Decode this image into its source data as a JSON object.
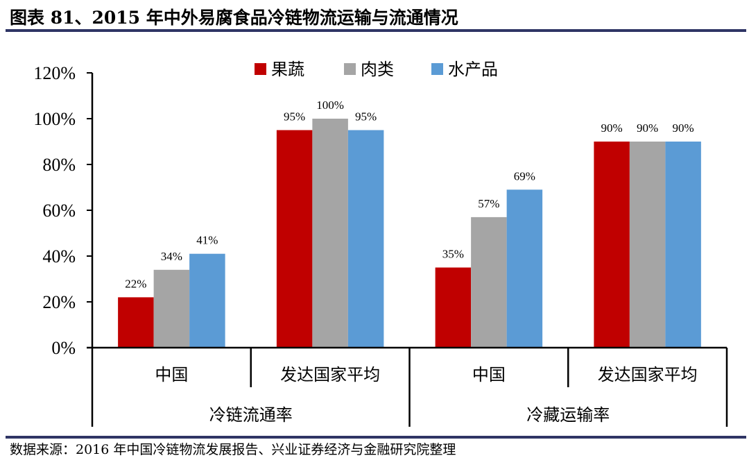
{
  "header": {
    "title": "图表 81、2015 年中外易腐食品冷链物流运输与流通情况"
  },
  "footer": {
    "source": "数据来源：2016 年中国冷链物流发展报告、兴业证券经济与金融研究院整理"
  },
  "colors": {
    "rule": "#2f3565",
    "axis": "#000000"
  },
  "chart_data": {
    "type": "bar",
    "title": "2015 年中外易腐食品冷链物流运输与流通情况",
    "xlabel": "",
    "ylabel": "",
    "ylim": [
      0,
      1.2
    ],
    "yticks": [
      "0%",
      "20%",
      "40%",
      "60%",
      "80%",
      "100%",
      "120%"
    ],
    "grid": false,
    "legend_position": "top-center",
    "categories": [
      "中国",
      "发达国家平均",
      "中国",
      "发达国家平均"
    ],
    "category_groups": [
      {
        "label": "冷链流通率",
        "span": [
          0,
          1
        ]
      },
      {
        "label": "冷藏运输率",
        "span": [
          2,
          3
        ]
      }
    ],
    "series": [
      {
        "name": "果蔬",
        "color": "#c00000",
        "values": [
          0.22,
          0.95,
          0.35,
          0.9
        ],
        "labels": [
          "22%",
          "95%",
          "35%",
          "90%"
        ]
      },
      {
        "name": "肉类",
        "color": "#a5a5a5",
        "values": [
          0.34,
          1.0,
          0.57,
          0.9
        ],
        "labels": [
          "34%",
          "100%",
          "57%",
          "90%"
        ]
      },
      {
        "name": "水产品",
        "color": "#5b9bd5",
        "values": [
          0.41,
          0.95,
          0.69,
          0.9
        ],
        "labels": [
          "41%",
          "95%",
          "69%",
          "90%"
        ]
      }
    ]
  }
}
